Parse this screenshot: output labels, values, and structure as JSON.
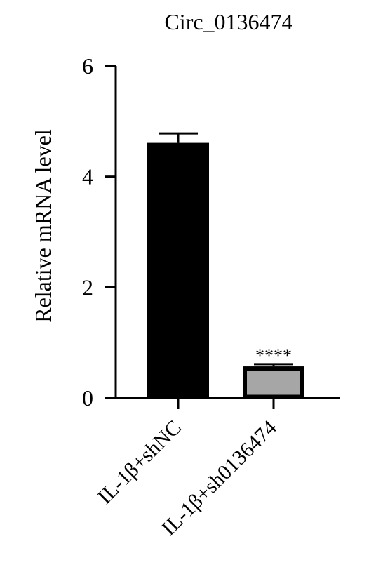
{
  "chart_data": {
    "type": "bar",
    "title": "Circ_0136474",
    "y_label": "Relative mRNA level",
    "categories": [
      "IL-1β+shNC",
      "IL-1β+sh0136474"
    ],
    "values": [
      4.61,
      0.57
    ],
    "errors": [
      0.17,
      0.04
    ],
    "colors": [
      "#000000",
      "#a6a6a6"
    ],
    "annotation": "****",
    "ylim": [
      0,
      6
    ],
    "yticks": [
      0,
      2,
      4,
      6
    ],
    "grid": false
  }
}
